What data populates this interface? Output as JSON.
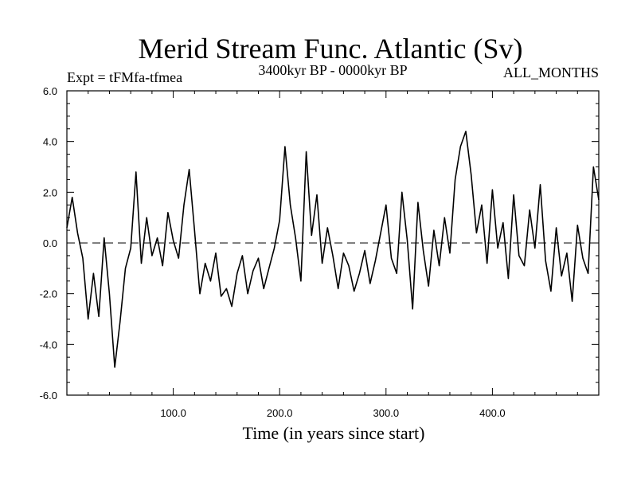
{
  "chart_data": {
    "type": "line",
    "title": "Merid Stream Func. Atlantic (Sv)",
    "subtitle_left": "Expt = tFMfa-tfmea",
    "subtitle_center": "3400kyr BP - 0000kyr BP",
    "subtitle_right": "ALL_MONTHS",
    "xlabel": "Time (in years since start)",
    "ylabel": "",
    "xlim": [
      0,
      500
    ],
    "ylim": [
      -6,
      6
    ],
    "xticks": [
      100,
      200,
      300,
      400
    ],
    "xtick_labels": [
      "100.0",
      "200.0",
      "300.0",
      "400.0"
    ],
    "yticks": [
      -6,
      -4,
      -2,
      0,
      2,
      4,
      6
    ],
    "ytick_labels": [
      "-6.0",
      "-4.0",
      "-2.0",
      "0.0",
      "2.0",
      "4.0",
      "6.0"
    ],
    "reference_line": 0,
    "series": [
      {
        "name": "Merid Stream Func. Atlantic",
        "x": [
          0,
          5,
          10,
          15,
          20,
          25,
          30,
          35,
          40,
          45,
          50,
          55,
          60,
          65,
          70,
          75,
          80,
          85,
          90,
          95,
          100,
          105,
          110,
          115,
          120,
          125,
          130,
          135,
          140,
          145,
          150,
          155,
          160,
          165,
          170,
          175,
          180,
          185,
          190,
          195,
          200,
          205,
          210,
          215,
          220,
          225,
          230,
          235,
          240,
          245,
          250,
          255,
          260,
          265,
          270,
          275,
          280,
          285,
          290,
          295,
          300,
          305,
          310,
          315,
          320,
          325,
          330,
          335,
          340,
          345,
          350,
          355,
          360,
          365,
          370,
          375,
          380,
          385,
          390,
          395,
          400,
          405,
          410,
          415,
          420,
          425,
          430,
          435,
          440,
          445,
          450,
          455,
          460,
          465,
          470,
          475,
          480,
          485,
          490,
          495,
          500
        ],
        "values": [
          0.6,
          1.8,
          0.4,
          -0.6,
          -3.0,
          -1.2,
          -2.9,
          0.2,
          -2.0,
          -4.9,
          -3.1,
          -1.0,
          -0.2,
          2.8,
          -0.8,
          1.0,
          -0.5,
          0.2,
          -0.9,
          1.2,
          0.1,
          -0.6,
          1.5,
          2.9,
          0.5,
          -2.0,
          -0.8,
          -1.5,
          -0.4,
          -2.1,
          -1.8,
          -2.5,
          -1.2,
          -0.5,
          -2.0,
          -1.1,
          -0.6,
          -1.8,
          -1.0,
          -0.2,
          0.9,
          3.8,
          1.5,
          0.2,
          -1.5,
          3.6,
          0.3,
          1.9,
          -0.8,
          0.6,
          -0.5,
          -1.8,
          -0.4,
          -0.9,
          -1.9,
          -1.2,
          -0.3,
          -1.6,
          -0.7,
          0.4,
          1.5,
          -0.6,
          -1.2,
          2.0,
          0.1,
          -2.6,
          1.6,
          -0.3,
          -1.7,
          0.5,
          -0.9,
          1.0,
          -0.4,
          2.5,
          3.8,
          4.4,
          2.7,
          0.4,
          1.5,
          -0.8,
          2.1,
          -0.2,
          0.8,
          -1.4,
          1.9,
          -0.5,
          -0.9,
          1.3,
          -0.2,
          2.3,
          -0.7,
          -1.9,
          0.6,
          -1.3,
          -0.4,
          -2.3,
          0.7,
          -0.6,
          -1.2,
          3.0,
          1.7
        ]
      }
    ]
  }
}
